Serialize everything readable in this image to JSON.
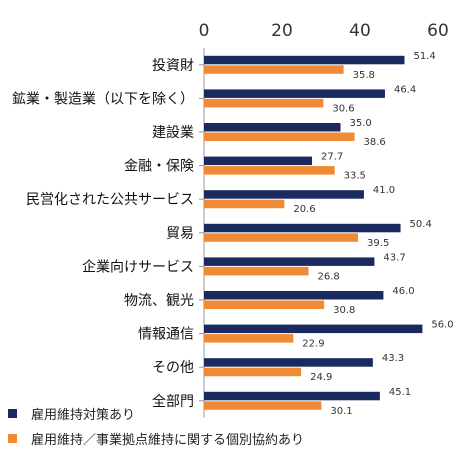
{
  "chart_data": {
    "type": "bar",
    "orientation": "horizontal",
    "categories": [
      "投資財",
      "鉱業・製造業（以下を除く）",
      "建設業",
      "金融・保険",
      "民営化された公共サービス",
      "貿易",
      "企業向けサービス",
      "物流、観光",
      "情報通信",
      "その他",
      "全部門"
    ],
    "series": [
      {
        "name": "雇用維持対策あり",
        "color": "#1a2a5e",
        "values": [
          51.4,
          46.4,
          35.0,
          27.7,
          41.0,
          50.4,
          43.7,
          46.0,
          56.0,
          43.3,
          45.1
        ]
      },
      {
        "name": "雇用維持／事業拠点維持に関する個別協約あり",
        "color": "#f08a35",
        "values": [
          35.8,
          30.6,
          38.6,
          33.5,
          20.6,
          39.5,
          26.8,
          30.8,
          22.9,
          24.9,
          30.1
        ]
      }
    ],
    "xlim": [
      0,
      60
    ],
    "xticks": [
      0,
      20,
      40,
      60
    ],
    "grid": false,
    "legend_position": "bottom-left"
  }
}
